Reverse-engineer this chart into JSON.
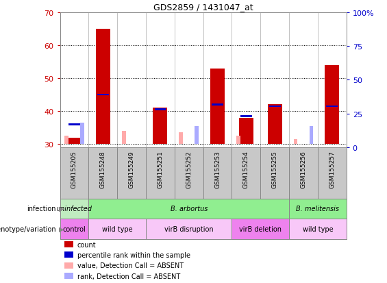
{
  "title": "GDS2859 / 1431047_at",
  "samples": [
    "GSM155205",
    "GSM155248",
    "GSM155249",
    "GSM155251",
    "GSM155252",
    "GSM155253",
    "GSM155254",
    "GSM155255",
    "GSM155256",
    "GSM155257"
  ],
  "ylim_left": [
    29,
    70
  ],
  "ylim_right": [
    0,
    100
  ],
  "yticks_left": [
    30,
    40,
    50,
    60,
    70
  ],
  "yticks_right": [
    0,
    25,
    50,
    75,
    100
  ],
  "baseline": 30,
  "red_bar_tops": [
    32.0,
    65.0,
    30.0,
    41.0,
    30.0,
    53.0,
    38.0,
    42.0,
    30.0,
    54.0
  ],
  "blue_bar_tops": [
    36.0,
    45.0,
    30.0,
    40.5,
    30.0,
    42.0,
    38.5,
    41.5,
    30.0,
    41.5
  ],
  "pink_bar_tops": [
    32.5,
    30.0,
    34.0,
    30.0,
    33.5,
    30.0,
    32.5,
    30.0,
    31.5,
    30.0
  ],
  "light_blue_tops": [
    36.5,
    30.0,
    30.0,
    30.0,
    35.5,
    30.0,
    30.0,
    30.0,
    35.5,
    30.0
  ],
  "infection_groups": [
    {
      "label": "uninfected",
      "start": 0,
      "end": 1,
      "color": "#c0ecc0"
    },
    {
      "label": "B. arbortus",
      "start": 1,
      "end": 8,
      "color": "#90ee90"
    },
    {
      "label": "B. melitensis",
      "start": 8,
      "end": 10,
      "color": "#90ee90"
    }
  ],
  "genotype_groups": [
    {
      "label": "control",
      "start": 0,
      "end": 1,
      "color": "#ee82ee"
    },
    {
      "label": "wild type",
      "start": 1,
      "end": 3,
      "color": "#f8c8f8"
    },
    {
      "label": "virB disruption",
      "start": 3,
      "end": 6,
      "color": "#f8c8f8"
    },
    {
      "label": "virB deletion",
      "start": 6,
      "end": 8,
      "color": "#ee82ee"
    },
    {
      "label": "wild type",
      "start": 8,
      "end": 10,
      "color": "#f8c8f8"
    }
  ],
  "red_color": "#cc0000",
  "blue_color": "#0000cc",
  "pink_color": "#ffaaaa",
  "light_blue_color": "#aaaaff",
  "bar_width": 0.5,
  "sample_bg": "#c8c8c8",
  "bg_color": "#ffffff",
  "axis_color_left": "#cc0000",
  "axis_color_right": "#0000cc",
  "legend_items": [
    {
      "color": "#cc0000",
      "label": "count"
    },
    {
      "color": "#0000cc",
      "label": "percentile rank within the sample"
    },
    {
      "color": "#ffaaaa",
      "label": "value, Detection Call = ABSENT"
    },
    {
      "color": "#aaaaff",
      "label": "rank, Detection Call = ABSENT"
    }
  ]
}
